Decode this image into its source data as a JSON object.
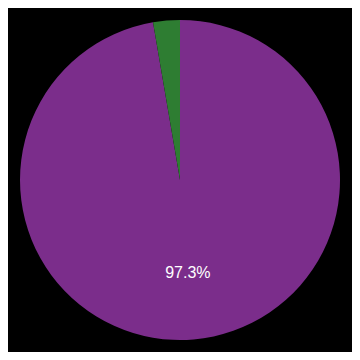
{
  "chart_data": {
    "type": "pie",
    "values": [
      97.3,
      2.7
    ],
    "colors": [
      "#7B2D8B",
      "#2E7D32"
    ],
    "value_labels": [
      "97.3%",
      null
    ],
    "data_labels": true
  }
}
